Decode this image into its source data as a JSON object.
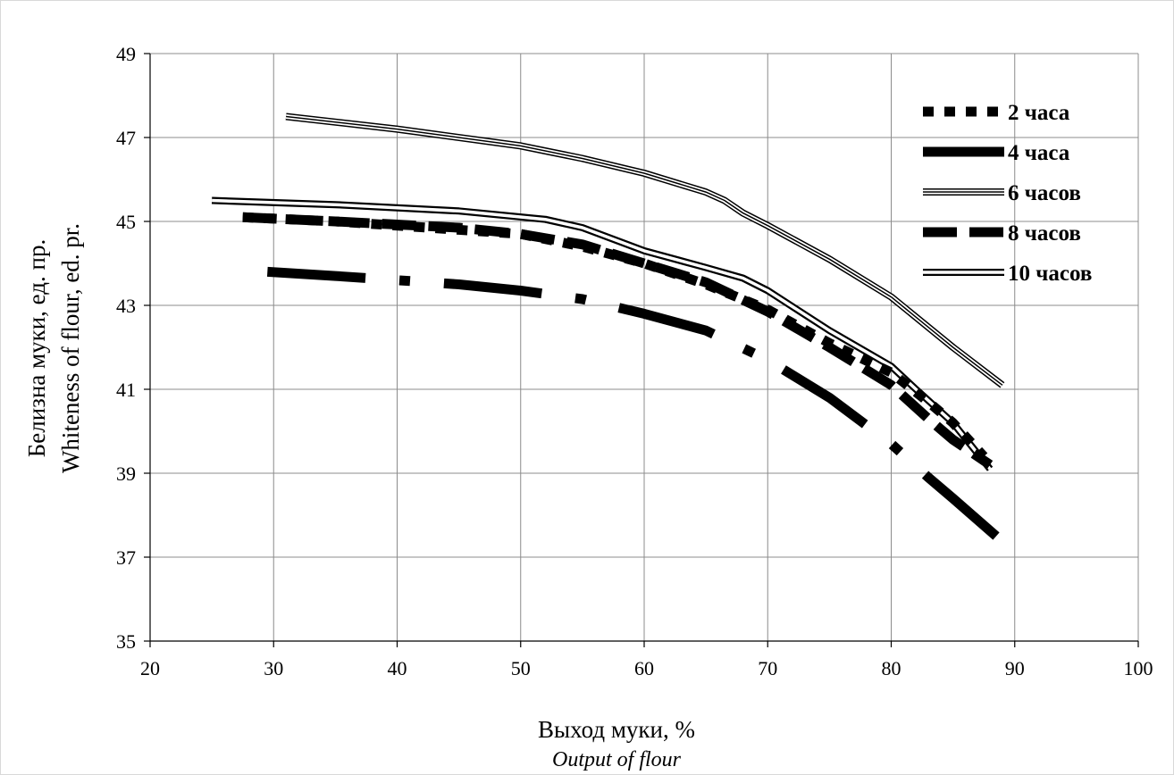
{
  "chart_data": {
    "type": "line",
    "xlabel": "Выход муки, %",
    "xlabel_sub": "Output of flour",
    "ylabel": "Белизна муки, ед. пр.",
    "ylabel_sub": "Whiteness of flour, ed. pr.",
    "xlim": [
      20,
      100
    ],
    "ylim": [
      35,
      49
    ],
    "xticks": [
      20,
      30,
      40,
      50,
      60,
      70,
      80,
      90,
      100
    ],
    "yticks": [
      35,
      37,
      39,
      41,
      43,
      45,
      47,
      49
    ],
    "grid": true,
    "legend_position": "top-right",
    "series": [
      {
        "name": "2 часа",
        "style": "square-dot",
        "x": [
          27.5,
          35,
          45,
          50,
          55,
          60,
          65,
          70,
          75,
          80,
          83,
          85,
          87.5
        ],
        "y": [
          45.1,
          45.0,
          44.8,
          44.7,
          44.4,
          44.0,
          43.5,
          42.9,
          42.1,
          41.4,
          40.7,
          40.2,
          39.4
        ]
      },
      {
        "name": "4 часа",
        "style": "long-dash-dot",
        "x": [
          29.5,
          35,
          40,
          45,
          50,
          55,
          60,
          65,
          70,
          75,
          80,
          83,
          85,
          88.5
        ],
        "y": [
          43.8,
          43.7,
          43.6,
          43.5,
          43.35,
          43.15,
          42.8,
          42.4,
          41.7,
          40.8,
          39.7,
          38.9,
          38.4,
          37.5
        ]
      },
      {
        "name": "6 часов",
        "style": "triple-line",
        "x": [
          31,
          40,
          50,
          55,
          60,
          65,
          66.5,
          68,
          70,
          75,
          80,
          85,
          89
        ],
        "y": [
          47.5,
          47.2,
          46.8,
          46.5,
          46.15,
          45.7,
          45.5,
          45.2,
          44.9,
          44.1,
          43.2,
          42.0,
          41.1
        ]
      },
      {
        "name": "8 часов",
        "style": "long-dash",
        "x": [
          27.5,
          35,
          45,
          50,
          55,
          60,
          65,
          70,
          75,
          80,
          83,
          85,
          88
        ],
        "y": [
          45.1,
          45.0,
          44.85,
          44.7,
          44.45,
          44.0,
          43.55,
          42.85,
          42.0,
          41.1,
          40.3,
          39.8,
          39.2
        ]
      },
      {
        "name": "10 часов",
        "style": "double-line",
        "x": [
          25,
          35,
          45,
          52,
          55,
          60,
          65,
          68,
          70,
          75,
          80,
          82,
          85,
          88
        ],
        "y": [
          45.5,
          45.4,
          45.25,
          45.05,
          44.85,
          44.3,
          43.9,
          43.65,
          43.35,
          42.4,
          41.55,
          41.0,
          40.2,
          39.1
        ]
      }
    ]
  }
}
